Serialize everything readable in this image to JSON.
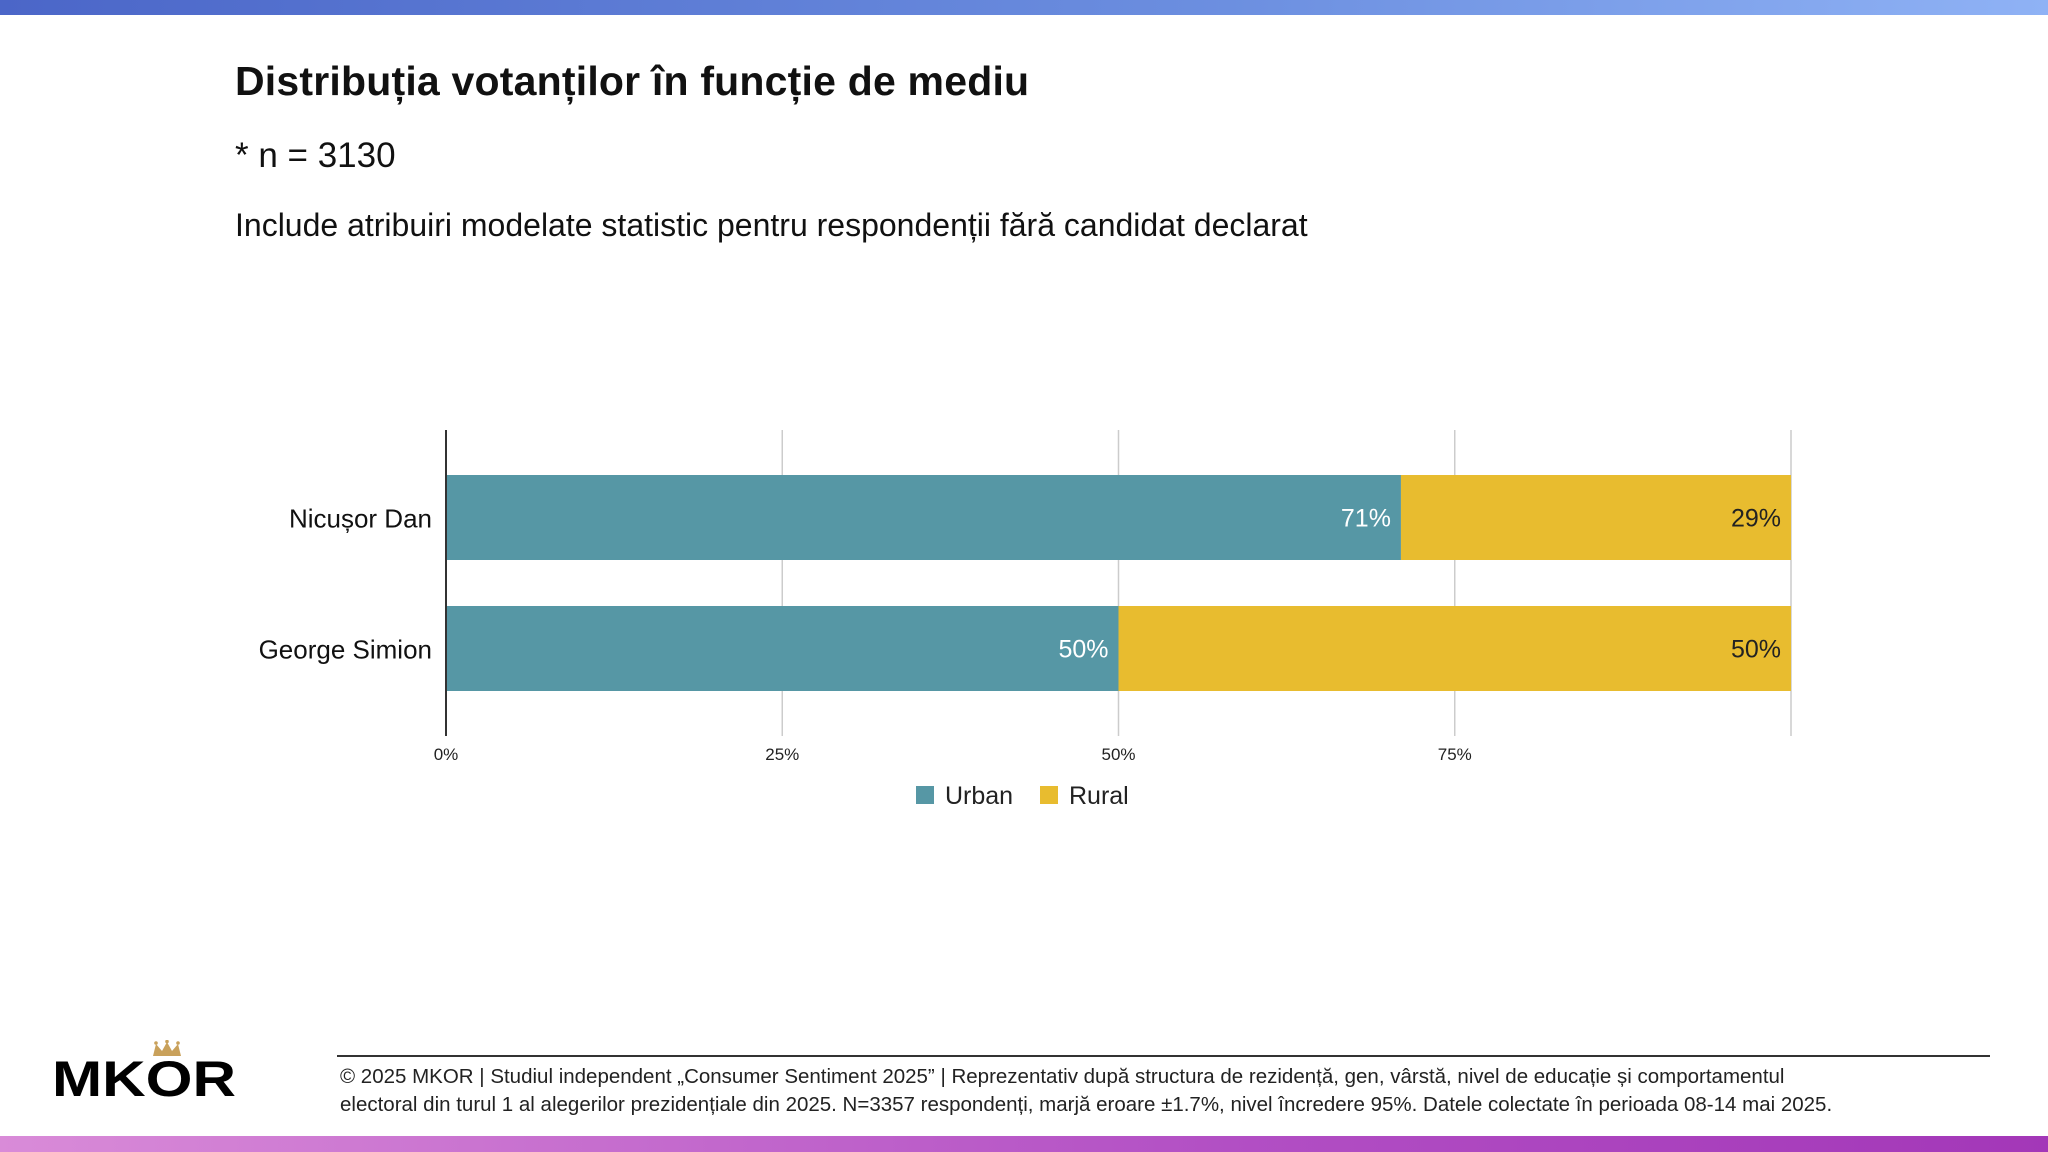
{
  "page": {
    "title": "Distribuția votanților în funcție de mediu",
    "n_label": "* n = 3130",
    "note": "Include atribuiri modelate statistic pentru respondenții fără candidat declarat"
  },
  "chart_data": {
    "type": "bar",
    "orientation": "horizontal",
    "stacked": true,
    "categories": [
      "Nicușor Dan",
      "George Simion"
    ],
    "series": [
      {
        "name": "Urban",
        "values": [
          71,
          50
        ],
        "labels": [
          "71%",
          "50%"
        ],
        "color": "#5697a5"
      },
      {
        "name": "Rural",
        "values": [
          29,
          50
        ],
        "labels": [
          "29%",
          "50%"
        ],
        "color": "#e8bc2f"
      }
    ],
    "xlim": [
      0,
      100
    ],
    "ticks": [
      {
        "value": 0,
        "label": "0%"
      },
      {
        "value": 25,
        "label": "25%"
      },
      {
        "value": 50,
        "label": "50%"
      },
      {
        "value": 75,
        "label": "75%"
      }
    ],
    "grid": true,
    "legend": "bottom-center",
    "colors": {
      "urban_label": "#ffffff",
      "rural_label": "#222222",
      "grid": "#cccccc",
      "axis": "#333333"
    }
  },
  "footer": {
    "line1": "© 2025 MKOR | Studiul independent „Consumer Sentiment 2025” | Reprezentativ după structura de rezidență, gen, vârstă, nivel de educație și comportamentul",
    "line2": "electoral din turul 1 al alegerilor prezidențiale din 2025. N=3357 respondenți, marjă eroare ±1.7%, nivel încredere 95%. Datele colectate în perioada 08-14 mai 2025."
  },
  "brand": {
    "logo_text": "MKOR",
    "top_bar_color": "#5a7bd6",
    "bottom_bar_color": "#b54fc6",
    "crown_color": "#c9a15b"
  }
}
